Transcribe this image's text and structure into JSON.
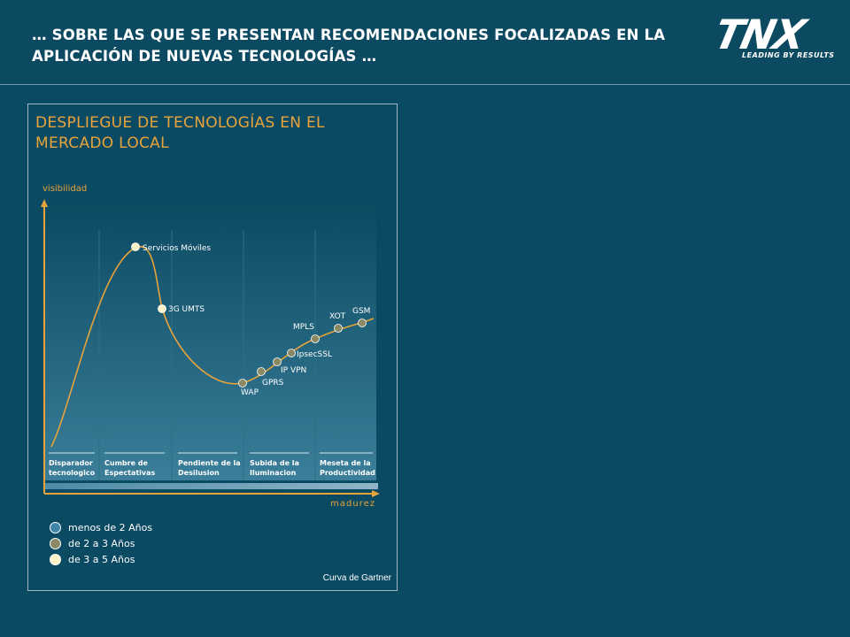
{
  "header": {
    "title": "… SOBRE LAS QUE SE PRESENTAN RECOMENDACIONES FOCALIZADAS EN LA APLICACIÓN DE NUEVAS TECNOLOGÍAS …",
    "logo_text": "TNX",
    "logo_tagline": "LEADING BY RESULTS"
  },
  "panel": {
    "title": "DESPLIEGUE DE TECNOLOGÍAS EN EL MERCADO LOCAL",
    "footnote": "Curva de Gartner"
  },
  "chart_data": {
    "type": "diagram",
    "y_axis_label": "visibilidad",
    "x_axis_label": "madurez",
    "phases": [
      [
        "Disparador",
        "tecnologico"
      ],
      [
        "Cumbre de",
        "Espectativas"
      ],
      [
        "Pendiente de la",
        "Desilusion"
      ],
      [
        "Subida de la",
        "Iluminacion"
      ],
      [
        "Meseta de la",
        "Productividad"
      ]
    ],
    "technologies": [
      {
        "name": "Servicios Móviles",
        "category": "de 3 a 5 Años"
      },
      {
        "name": "3G UMTS",
        "category": "de 3 a 5 Años"
      },
      {
        "name": "WAP",
        "category": "de 2 a 3 Años"
      },
      {
        "name": "GPRS",
        "category": "de 2 a 3 Años"
      },
      {
        "name": "IP VPN",
        "category": "de 2 a 3 Años"
      },
      {
        "name": "IpsecSSL",
        "category": "de 2 a 3 Años"
      },
      {
        "name": "MPLS",
        "category": "de 2 a 3 Años"
      },
      {
        "name": "XOT",
        "category": "de 2 a 3 Años"
      },
      {
        "name": "GSM",
        "category": "de 2 a 3 Años"
      }
    ]
  },
  "legend": [
    {
      "label": "menos de 2 Años",
      "color": "#3f86a8"
    },
    {
      "label": "de 2 a 3 Años",
      "color": "#8c8a66"
    },
    {
      "label": "de 3 a 5 Años",
      "color": "#fbf3c8"
    }
  ],
  "colors": {
    "accent": "#e8a33a",
    "background": "#0b4a63"
  }
}
